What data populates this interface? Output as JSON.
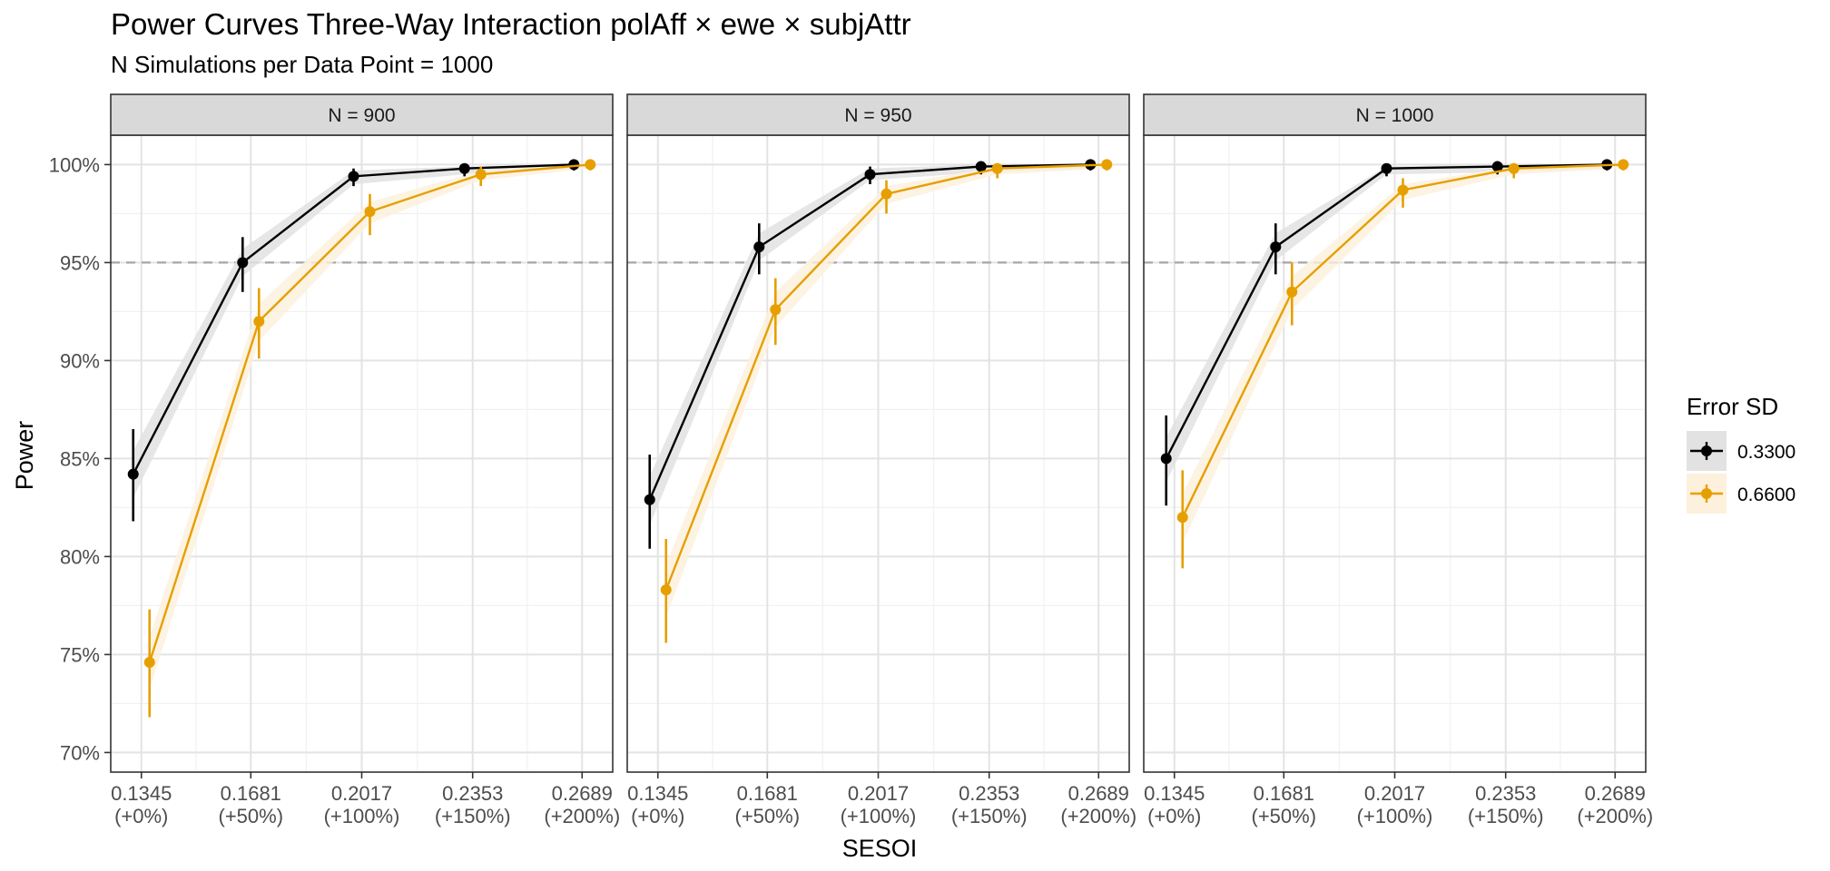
{
  "title": "Power Curves Three-Way Interaction polAff × ewe × subjAttr",
  "subtitle": "N Simulations per Data Point = 1000",
  "chart_data": {
    "type": "line",
    "xlabel": "SESOI",
    "ylabel": "Power",
    "x_ticks": [
      {
        "value": "0.1345",
        "sub": "(+0%)"
      },
      {
        "value": "0.1681",
        "sub": "(+50%)"
      },
      {
        "value": "0.2017",
        "sub": "(+100%)"
      },
      {
        "value": "0.2353",
        "sub": "(+150%)"
      },
      {
        "value": "0.2689",
        "sub": "(+200%)"
      }
    ],
    "y_ticks": [
      "70%",
      "75%",
      "80%",
      "85%",
      "90%",
      "95%",
      "100%"
    ],
    "ylim": [
      69,
      101.5
    ],
    "reference_line": 95,
    "legend": {
      "title": "Error SD",
      "position": "right",
      "entries": [
        {
          "label": "0.3300",
          "color": "#000000",
          "ribbon": "#e2e2e2"
        },
        {
          "label": "0.6600",
          "color": "#e69f00",
          "ribbon": "#fdf0dc"
        }
      ]
    },
    "facets": [
      {
        "label": "N = 900",
        "series": [
          {
            "name": "0.3300",
            "values": [
              84.2,
              95.0,
              99.4,
              99.8,
              100.0
            ],
            "err_lo": [
              81.8,
              93.5,
              98.9,
              99.4,
              99.7
            ],
            "err_hi": [
              86.5,
              96.3,
              99.8,
              99.97,
              100.0
            ],
            "band_lo": [
              83.0,
              94.3,
              99.0,
              99.5,
              99.8
            ],
            "band_hi": [
              85.4,
              95.7,
              99.7,
              99.9,
              100.0
            ]
          },
          {
            "name": "0.6600",
            "values": [
              74.6,
              92.0,
              97.6,
              99.5,
              100.0
            ],
            "err_lo": [
              71.8,
              90.1,
              96.4,
              98.9,
              99.7
            ],
            "err_hi": [
              77.3,
              93.7,
              98.5,
              99.9,
              100.0
            ],
            "band_lo": [
              73.2,
              91.0,
              97.0,
              99.2,
              99.8
            ],
            "band_hi": [
              75.9,
              92.9,
              98.1,
              99.7,
              100.0
            ]
          }
        ]
      },
      {
        "label": "N = 950",
        "series": [
          {
            "name": "0.3300",
            "values": [
              82.9,
              95.8,
              99.5,
              99.9,
              100.0
            ],
            "err_lo": [
              80.4,
              94.4,
              99.0,
              99.5,
              99.7
            ],
            "err_hi": [
              85.2,
              97.0,
              99.9,
              100.0,
              100.0
            ],
            "band_lo": [
              81.6,
              95.1,
              99.2,
              99.6,
              99.8
            ],
            "band_hi": [
              84.1,
              96.5,
              99.8,
              100.0,
              100.0
            ]
          },
          {
            "name": "0.6600",
            "values": [
              78.3,
              92.6,
              98.5,
              99.8,
              100.0
            ],
            "err_lo": [
              75.6,
              90.8,
              97.5,
              99.3,
              99.7
            ],
            "err_hi": [
              80.9,
              94.2,
              99.2,
              100.0,
              100.0
            ],
            "band_lo": [
              76.9,
              91.7,
              98.0,
              99.5,
              99.8
            ],
            "band_hi": [
              79.6,
              93.5,
              98.9,
              99.9,
              100.0
            ]
          }
        ]
      },
      {
        "label": "N = 1000",
        "series": [
          {
            "name": "0.3300",
            "values": [
              85.0,
              95.8,
              99.8,
              99.9,
              100.0
            ],
            "err_lo": [
              82.6,
              94.4,
              99.4,
              99.5,
              99.7
            ],
            "err_hi": [
              87.2,
              97.0,
              100.0,
              100.0,
              100.0
            ],
            "band_lo": [
              83.8,
              95.1,
              99.5,
              99.6,
              99.8
            ],
            "band_hi": [
              86.1,
              96.5,
              99.9,
              100.0,
              100.0
            ]
          },
          {
            "name": "0.6600",
            "values": [
              82.0,
              93.5,
              98.7,
              99.8,
              100.0
            ],
            "err_lo": [
              79.4,
              91.8,
              97.8,
              99.3,
              99.7
            ],
            "err_hi": [
              84.4,
              95.0,
              99.3,
              100.0,
              100.0
            ],
            "band_lo": [
              80.7,
              92.6,
              98.2,
              99.5,
              99.8
            ],
            "band_hi": [
              83.2,
              94.3,
              99.0,
              99.9,
              100.0
            ]
          }
        ]
      }
    ]
  }
}
